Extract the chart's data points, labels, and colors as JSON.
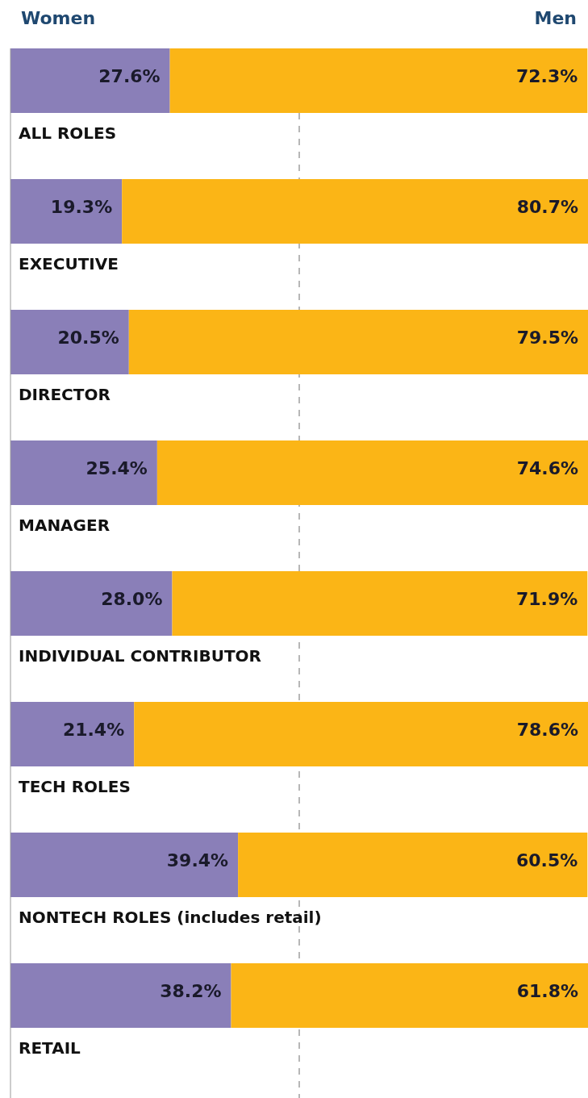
{
  "chart_data": {
    "type": "bar",
    "orientation": "horizontal",
    "stacked": true,
    "categories": [
      "ALL ROLES",
      "EXECUTIVE",
      "DIRECTOR",
      "MANAGER",
      "INDIVIDUAL CONTRIBUTOR",
      "TECH ROLES",
      "NONTECH ROLES (includes retail)",
      "RETAIL"
    ],
    "series": [
      {
        "name": "Women",
        "color": "#8a7fb8",
        "values": [
          27.6,
          19.3,
          20.5,
          25.4,
          28.0,
          21.4,
          39.4,
          38.2
        ],
        "value_labels": [
          "27.6%",
          "19.3%",
          "20.5%",
          "25.4%",
          "28.0%",
          "21.4%",
          "39.4%",
          "38.2%"
        ]
      },
      {
        "name": "Men",
        "color": "#fbb516",
        "values": [
          72.3,
          80.7,
          79.5,
          74.6,
          71.9,
          78.6,
          60.5,
          61.8
        ],
        "value_labels": [
          "72.3%",
          "80.7%",
          "79.5%",
          "74.6%",
          "71.9%",
          "78.6%",
          "60.5%",
          "61.8%"
        ]
      }
    ],
    "xlim": [
      0,
      100
    ],
    "tick_labels": false,
    "legend": "top",
    "ref_lines": [
      {
        "axis": "x",
        "value": 50,
        "line_style": "dashed",
        "color": "#888888"
      }
    ]
  }
}
